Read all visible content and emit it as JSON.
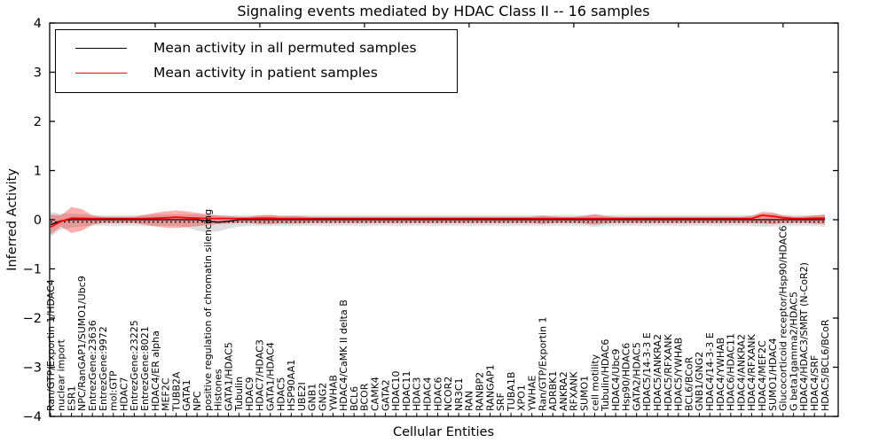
{
  "chart_data": {
    "type": "line",
    "title": "Signaling events mediated by HDAC Class II -- 16 samples",
    "xlabel": "Cellular Entities",
    "ylabel": "Inferred Activity",
    "ylim": [
      -4,
      4
    ],
    "yticks": [
      4,
      3,
      2,
      1,
      0,
      -1,
      -2,
      -3,
      -4
    ],
    "top_tick_indices": [
      10,
      20,
      30,
      40,
      50,
      60,
      70
    ],
    "legend_position": "upper left",
    "grid": false,
    "categories": [
      "Ran/GTP/Exportin 1/HDAC4",
      "nuclear import",
      "ESR1",
      "NPC/RanGAP1/SUMO1/Ubc9",
      "EntrezGene:23636",
      "EntrezGene:9972",
      "mol:GTP",
      "HDAC7",
      "EntrezGene:23225",
      "EntrezGene:8021",
      "HDAC4/ER alpha",
      "MEF2C",
      "TUBB2A",
      "GATA1",
      "NPC",
      "positive regulation of chromatin silencing",
      "Histones",
      "GATA1/HDAC5",
      "Tubulin",
      "HDAC9",
      "HDAC7/HDAC3",
      "GATA1/HDAC4",
      "HDAC5",
      "HSP90AA1",
      "UBE2I",
      "GNB1",
      "GNG2",
      "YWHAB",
      "HDAC4/CaMK II delta B",
      "BCL6",
      "BCOR",
      "CAMK4",
      "GATA2",
      "HDAC10",
      "HDAC11",
      "HDAC3",
      "HDAC4",
      "HDAC6",
      "NCOR2",
      "NR3C1",
      "RAN",
      "RANBP2",
      "RANGAP1",
      "SRF",
      "TUBA1B",
      "XPO1",
      "YWHAE",
      "Ran/GTP/Exportin 1",
      "ADRBK1",
      "ANKRA2",
      "RFXANK",
      "SUMO1",
      "cell motility",
      "Tubulin/HDAC6",
      "HDAC4/Ubc9",
      "Hsp90/HDAC6",
      "GATA2/HDAC5",
      "HDAC5/14-3-3 E",
      "HDAC5/ANKRA2",
      "HDAC5/RFXANK",
      "HDAC5/YWHAB",
      "BCL6/BCoR",
      "GNB1/GNG2",
      "HDAC4/14-3-3 E",
      "HDAC4/YWHAB",
      "HDAC6/HDAC11",
      "HDAC4/ANKRA2",
      "HDAC4/RFXANK",
      "HDAC4/MEF2C",
      "SUMO1/HDAC4",
      "Glucocorticoid receptor/Hsp90/HDAC6",
      "G beta1gamma2/HDAC5",
      "HDAC4/HDAC3/SMRT (N-CoR2)",
      "HDAC4/SRF",
      "HDAC5/BCL6/BCoR"
    ],
    "series": [
      {
        "name": "Mean activity in all permuted samples",
        "color": "#000000",
        "default": 0.0,
        "overrides": {
          "0": -0.1,
          "1": -0.02,
          "15": -0.03,
          "16": -0.05,
          "17": -0.03
        }
      },
      {
        "name": "Mean activity in patient samples",
        "color": "#ff0000",
        "default": 0.025,
        "overrides": {
          "0": -0.15,
          "1": -0.03,
          "2": 0.03,
          "3": 0.03,
          "10": 0.03,
          "11": 0.04,
          "12": 0.05,
          "13": 0.04,
          "14": 0.03,
          "20": 0.03,
          "21": 0.03,
          "68": 0.09,
          "69": 0.07,
          "70": 0.04,
          "73": 0.03,
          "74": 0.035
        }
      }
    ],
    "bands": [
      {
        "name": "permuted-samples-range",
        "color": "#000000",
        "opacity": 0.13,
        "upper_default": 0.09,
        "lower_default": -0.12,
        "upper_overrides": {
          "0": 0.16,
          "1": 0.12,
          "2": 0.12,
          "3": 0.11,
          "10": 0.11,
          "11": 0.11,
          "12": 0.11,
          "13": 0.11,
          "14": 0.11,
          "52": 0.11,
          "68": 0.12,
          "69": 0.12,
          "74": 0.11
        },
        "lower_overrides": {
          "0": -0.34,
          "1": -0.2,
          "2": -0.16,
          "3": -0.14,
          "13": -0.16,
          "14": -0.22,
          "15": -0.26,
          "16": -0.24,
          "17": -0.18,
          "18": -0.14,
          "52": -0.15,
          "68": -0.14,
          "69": -0.14,
          "74": -0.15
        }
      },
      {
        "name": "patient-samples-range",
        "color": "#ff0000",
        "opacity": 0.32,
        "upper_default": 0.055,
        "lower_default": -0.065,
        "upper_overrides": {
          "0": 0.1,
          "1": 0.09,
          "2": 0.26,
          "3": 0.21,
          "4": 0.09,
          "9": 0.1,
          "10": 0.14,
          "11": 0.17,
          "12": 0.19,
          "13": 0.17,
          "14": 0.14,
          "15": 0.11,
          "16": 0.09,
          "17": 0.07,
          "19": 0.06,
          "20": 0.09,
          "21": 0.1,
          "22": 0.07,
          "23": 0.08,
          "24": 0.07,
          "47": 0.085,
          "48": 0.065,
          "51": 0.08,
          "52": 0.11,
          "53": 0.08,
          "67": 0.08,
          "68": 0.16,
          "69": 0.15,
          "70": 0.09,
          "72": 0.065,
          "73": 0.09,
          "74": 0.1
        },
        "lower_overrides": {
          "0": -0.3,
          "1": -0.14,
          "2": -0.27,
          "3": -0.22,
          "4": -0.1,
          "9": -0.1,
          "10": -0.14,
          "11": -0.16,
          "12": -0.17,
          "13": -0.15,
          "14": -0.13,
          "15": -0.11,
          "16": -0.09,
          "17": -0.08,
          "20": -0.09,
          "21": -0.09,
          "22": -0.075,
          "23": -0.08,
          "24": -0.075,
          "47": -0.085,
          "48": -0.07,
          "51": -0.08,
          "52": -0.1,
          "53": -0.08,
          "68": -0.08,
          "69": -0.09,
          "70": -0.07,
          "73": -0.08,
          "74": -0.09
        }
      }
    ],
    "baseline": {
      "style": "dotted",
      "color": "#000000",
      "value": -0.045
    }
  },
  "colors": {
    "background": "#ffffff",
    "axis": "#000000",
    "text": "#000000"
  }
}
